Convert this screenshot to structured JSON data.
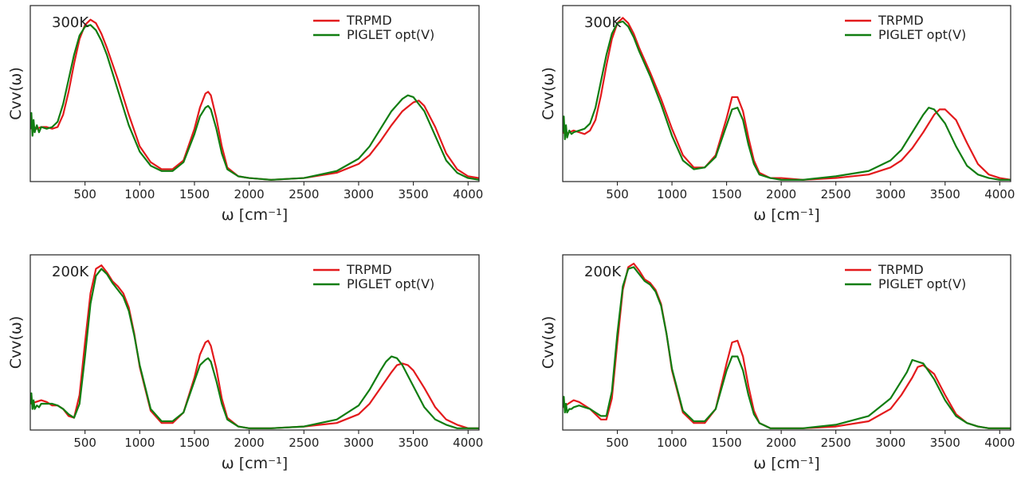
{
  "colors": {
    "trpmd": "#e31a1c",
    "piglet": "#117d11",
    "axis": "#222222",
    "background": "#ffffff"
  },
  "chart_data": [
    {
      "type": "line",
      "panel": "top-left",
      "annotation": "300K",
      "xlabel": "ω  [cm⁻¹]",
      "ylabel": "Cvv(ω)",
      "xlim": [
        0,
        4100
      ],
      "ylim": [
        0,
        1.0
      ],
      "xticks": [
        500,
        1000,
        1500,
        2000,
        2500,
        3000,
        3500,
        4000
      ],
      "yticks_visible": false,
      "legend": "top-right",
      "grid": false,
      "series": [
        {
          "name": "TRPMD",
          "color": "#e31a1c",
          "x": [
            0,
            30,
            60,
            100,
            150,
            200,
            250,
            300,
            350,
            400,
            450,
            500,
            550,
            600,
            650,
            700,
            800,
            900,
            1000,
            1100,
            1200,
            1300,
            1400,
            1500,
            1550,
            1600,
            1625,
            1650,
            1700,
            1750,
            1800,
            1900,
            2000,
            2200,
            2500,
            2800,
            3000,
            3100,
            3200,
            3300,
            3400,
            3500,
            3550,
            3600,
            3700,
            3800,
            3900,
            4000,
            4100
          ],
          "y": [
            0.3,
            0.31,
            0.3,
            0.31,
            0.31,
            0.3,
            0.31,
            0.38,
            0.51,
            0.67,
            0.81,
            0.89,
            0.92,
            0.9,
            0.84,
            0.76,
            0.58,
            0.38,
            0.2,
            0.11,
            0.07,
            0.07,
            0.12,
            0.3,
            0.42,
            0.5,
            0.51,
            0.49,
            0.36,
            0.2,
            0.08,
            0.03,
            0.02,
            0.01,
            0.02,
            0.05,
            0.1,
            0.15,
            0.23,
            0.32,
            0.4,
            0.45,
            0.46,
            0.43,
            0.31,
            0.16,
            0.07,
            0.03,
            0.02
          ]
        },
        {
          "name": "PIGLET opt(V)",
          "color": "#117d11",
          "x": [
            0,
            10,
            20,
            30,
            40,
            60,
            80,
            100,
            150,
            200,
            250,
            300,
            350,
            400,
            450,
            500,
            550,
            600,
            650,
            700,
            800,
            900,
            1000,
            1100,
            1200,
            1300,
            1400,
            1500,
            1550,
            1600,
            1625,
            1650,
            1700,
            1750,
            1800,
            1900,
            2000,
            2200,
            2500,
            2800,
            3000,
            3100,
            3200,
            3300,
            3400,
            3450,
            3500,
            3600,
            3700,
            3800,
            3900,
            4000,
            4100
          ],
          "y": [
            0.3,
            0.39,
            0.26,
            0.35,
            0.28,
            0.32,
            0.28,
            0.31,
            0.3,
            0.31,
            0.34,
            0.44,
            0.58,
            0.72,
            0.83,
            0.88,
            0.89,
            0.86,
            0.8,
            0.72,
            0.52,
            0.32,
            0.17,
            0.09,
            0.06,
            0.06,
            0.11,
            0.27,
            0.37,
            0.42,
            0.43,
            0.41,
            0.3,
            0.16,
            0.07,
            0.03,
            0.02,
            0.01,
            0.02,
            0.06,
            0.13,
            0.2,
            0.3,
            0.4,
            0.47,
            0.49,
            0.48,
            0.4,
            0.26,
            0.12,
            0.05,
            0.02,
            0.01
          ]
        }
      ]
    },
    {
      "type": "line",
      "panel": "top-right",
      "annotation": "300K",
      "xlabel": "ω  [cm⁻¹]",
      "ylabel": "Cvv(ω)",
      "xlim": [
        0,
        4100
      ],
      "ylim": [
        0,
        1.0
      ],
      "xticks": [
        500,
        1000,
        1500,
        2000,
        2500,
        3000,
        3500,
        4000
      ],
      "yticks_visible": false,
      "legend": "top-right",
      "grid": false,
      "series": [
        {
          "name": "TRPMD",
          "color": "#e31a1c",
          "x": [
            0,
            30,
            60,
            100,
            150,
            200,
            250,
            300,
            350,
            400,
            450,
            500,
            550,
            600,
            650,
            700,
            800,
            900,
            1000,
            1100,
            1200,
            1300,
            1400,
            1500,
            1550,
            1600,
            1650,
            1700,
            1750,
            1800,
            1900,
            2000,
            2200,
            2500,
            2800,
            3000,
            3100,
            3200,
            3300,
            3400,
            3450,
            3500,
            3600,
            3700,
            3800,
            3900,
            4000,
            4100
          ],
          "y": [
            0.28,
            0.27,
            0.28,
            0.29,
            0.28,
            0.27,
            0.29,
            0.35,
            0.49,
            0.66,
            0.81,
            0.9,
            0.93,
            0.9,
            0.84,
            0.76,
            0.62,
            0.47,
            0.3,
            0.15,
            0.08,
            0.08,
            0.15,
            0.36,
            0.48,
            0.48,
            0.4,
            0.25,
            0.12,
            0.05,
            0.02,
            0.02,
            0.01,
            0.02,
            0.04,
            0.08,
            0.12,
            0.19,
            0.28,
            0.38,
            0.41,
            0.41,
            0.35,
            0.22,
            0.1,
            0.04,
            0.02,
            0.01
          ]
        },
        {
          "name": "PIGLET opt(V)",
          "color": "#117d11",
          "x": [
            0,
            10,
            20,
            30,
            40,
            60,
            80,
            100,
            150,
            200,
            250,
            300,
            350,
            400,
            450,
            500,
            550,
            600,
            650,
            700,
            800,
            900,
            1000,
            1100,
            1200,
            1300,
            1400,
            1500,
            1550,
            1600,
            1650,
            1700,
            1750,
            1800,
            1900,
            2000,
            2200,
            2500,
            2800,
            3000,
            3100,
            3200,
            3300,
            3350,
            3400,
            3500,
            3600,
            3700,
            3800,
            3900,
            4000,
            4100
          ],
          "y": [
            0.28,
            0.37,
            0.24,
            0.32,
            0.25,
            0.29,
            0.27,
            0.28,
            0.29,
            0.3,
            0.33,
            0.42,
            0.57,
            0.72,
            0.84,
            0.9,
            0.91,
            0.88,
            0.82,
            0.74,
            0.6,
            0.44,
            0.26,
            0.12,
            0.07,
            0.08,
            0.14,
            0.32,
            0.41,
            0.42,
            0.35,
            0.21,
            0.1,
            0.04,
            0.02,
            0.01,
            0.01,
            0.03,
            0.06,
            0.12,
            0.18,
            0.28,
            0.38,
            0.42,
            0.41,
            0.33,
            0.2,
            0.09,
            0.04,
            0.02,
            0.01,
            0.01
          ]
        }
      ]
    },
    {
      "type": "line",
      "panel": "bottom-left",
      "annotation": "200K",
      "xlabel": "ω  [cm⁻¹]",
      "ylabel": "Cvv(ω)",
      "xlim": [
        0,
        4100
      ],
      "ylim": [
        0,
        1.0
      ],
      "xticks": [
        500,
        1000,
        1500,
        2000,
        2500,
        3000,
        3500,
        4000
      ],
      "yticks_visible": false,
      "legend": "top-right",
      "grid": false,
      "series": [
        {
          "name": "TRPMD",
          "color": "#e31a1c",
          "x": [
            0,
            50,
            100,
            150,
            200,
            250,
            300,
            350,
            400,
            450,
            500,
            550,
            600,
            650,
            700,
            750,
            800,
            850,
            900,
            950,
            1000,
            1100,
            1200,
            1300,
            1400,
            1500,
            1550,
            1600,
            1625,
            1650,
            1700,
            1750,
            1800,
            1900,
            2000,
            2200,
            2500,
            2800,
            3000,
            3100,
            3200,
            3300,
            3350,
            3400,
            3450,
            3500,
            3600,
            3700,
            3800,
            3900,
            4000,
            4100
          ],
          "y": [
            0.15,
            0.16,
            0.17,
            0.16,
            0.14,
            0.14,
            0.12,
            0.08,
            0.07,
            0.2,
            0.5,
            0.78,
            0.92,
            0.94,
            0.9,
            0.85,
            0.82,
            0.78,
            0.7,
            0.55,
            0.36,
            0.11,
            0.04,
            0.04,
            0.1,
            0.3,
            0.43,
            0.5,
            0.51,
            0.48,
            0.35,
            0.18,
            0.07,
            0.02,
            0.01,
            0.01,
            0.02,
            0.04,
            0.09,
            0.15,
            0.24,
            0.33,
            0.37,
            0.38,
            0.37,
            0.34,
            0.24,
            0.13,
            0.06,
            0.03,
            0.01,
            0.01
          ]
        },
        {
          "name": "PIGLET opt(V)",
          "color": "#117d11",
          "x": [
            0,
            10,
            20,
            30,
            40,
            60,
            80,
            100,
            150,
            200,
            250,
            300,
            350,
            400,
            450,
            500,
            550,
            600,
            650,
            700,
            750,
            800,
            850,
            900,
            950,
            1000,
            1100,
            1200,
            1300,
            1400,
            1500,
            1550,
            1600,
            1625,
            1650,
            1700,
            1750,
            1800,
            1900,
            2000,
            2200,
            2500,
            2800,
            3000,
            3100,
            3200,
            3250,
            3300,
            3350,
            3400,
            3500,
            3600,
            3700,
            3800,
            3900,
            4000,
            4100
          ],
          "y": [
            0.15,
            0.21,
            0.12,
            0.17,
            0.12,
            0.14,
            0.13,
            0.15,
            0.15,
            0.15,
            0.14,
            0.12,
            0.09,
            0.07,
            0.15,
            0.42,
            0.72,
            0.88,
            0.92,
            0.89,
            0.84,
            0.8,
            0.76,
            0.68,
            0.54,
            0.37,
            0.12,
            0.05,
            0.05,
            0.1,
            0.28,
            0.37,
            0.4,
            0.41,
            0.39,
            0.28,
            0.15,
            0.06,
            0.02,
            0.01,
            0.01,
            0.02,
            0.06,
            0.14,
            0.23,
            0.34,
            0.39,
            0.42,
            0.41,
            0.37,
            0.25,
            0.13,
            0.06,
            0.03,
            0.01,
            0.01,
            0.01
          ]
        }
      ]
    },
    {
      "type": "line",
      "panel": "bottom-right",
      "annotation": "200K",
      "xlabel": "ω  [cm⁻¹]",
      "ylabel": "Cvv(ω)",
      "xlim": [
        0,
        4100
      ],
      "ylim": [
        0,
        1.0
      ],
      "xticks": [
        500,
        1000,
        1500,
        2000,
        2500,
        3000,
        3500,
        4000
      ],
      "yticks_visible": false,
      "legend": "top-right",
      "grid": false,
      "series": [
        {
          "name": "TRPMD",
          "color": "#e31a1c",
          "x": [
            0,
            50,
            100,
            150,
            200,
            250,
            300,
            350,
            400,
            450,
            500,
            550,
            600,
            650,
            700,
            750,
            800,
            850,
            900,
            950,
            1000,
            1100,
            1200,
            1300,
            1400,
            1500,
            1550,
            1600,
            1650,
            1700,
            1750,
            1800,
            1900,
            2000,
            2200,
            2500,
            2800,
            3000,
            3100,
            3200,
            3250,
            3300,
            3400,
            3500,
            3600,
            3700,
            3800,
            3900,
            4000,
            4100
          ],
          "y": [
            0.13,
            0.15,
            0.17,
            0.16,
            0.14,
            0.12,
            0.09,
            0.06,
            0.06,
            0.18,
            0.5,
            0.8,
            0.93,
            0.95,
            0.91,
            0.86,
            0.84,
            0.8,
            0.72,
            0.55,
            0.34,
            0.1,
            0.04,
            0.04,
            0.12,
            0.38,
            0.5,
            0.51,
            0.42,
            0.25,
            0.11,
            0.04,
            0.01,
            0.01,
            0.01,
            0.02,
            0.05,
            0.12,
            0.2,
            0.3,
            0.36,
            0.37,
            0.32,
            0.2,
            0.09,
            0.04,
            0.02,
            0.01,
            0.01,
            0.01
          ]
        },
        {
          "name": "PIGLET opt(V)",
          "color": "#117d11",
          "x": [
            0,
            10,
            20,
            30,
            40,
            60,
            80,
            100,
            150,
            200,
            250,
            300,
            350,
            400,
            450,
            500,
            550,
            600,
            650,
            700,
            750,
            800,
            850,
            900,
            950,
            1000,
            1100,
            1200,
            1300,
            1400,
            1500,
            1550,
            1600,
            1650,
            1700,
            1750,
            1800,
            1900,
            2000,
            2200,
            2500,
            2800,
            3000,
            3100,
            3150,
            3200,
            3300,
            3400,
            3500,
            3600,
            3700,
            3800,
            3900,
            4000,
            4100
          ],
          "y": [
            0.13,
            0.19,
            0.1,
            0.15,
            0.1,
            0.12,
            0.12,
            0.13,
            0.14,
            0.13,
            0.12,
            0.1,
            0.08,
            0.08,
            0.22,
            0.55,
            0.82,
            0.92,
            0.93,
            0.89,
            0.85,
            0.83,
            0.79,
            0.71,
            0.55,
            0.35,
            0.11,
            0.05,
            0.05,
            0.12,
            0.34,
            0.42,
            0.42,
            0.34,
            0.2,
            0.09,
            0.04,
            0.01,
            0.01,
            0.01,
            0.03,
            0.08,
            0.18,
            0.28,
            0.33,
            0.4,
            0.38,
            0.29,
            0.17,
            0.08,
            0.04,
            0.02,
            0.01,
            0.01,
            0.01
          ]
        }
      ]
    }
  ]
}
